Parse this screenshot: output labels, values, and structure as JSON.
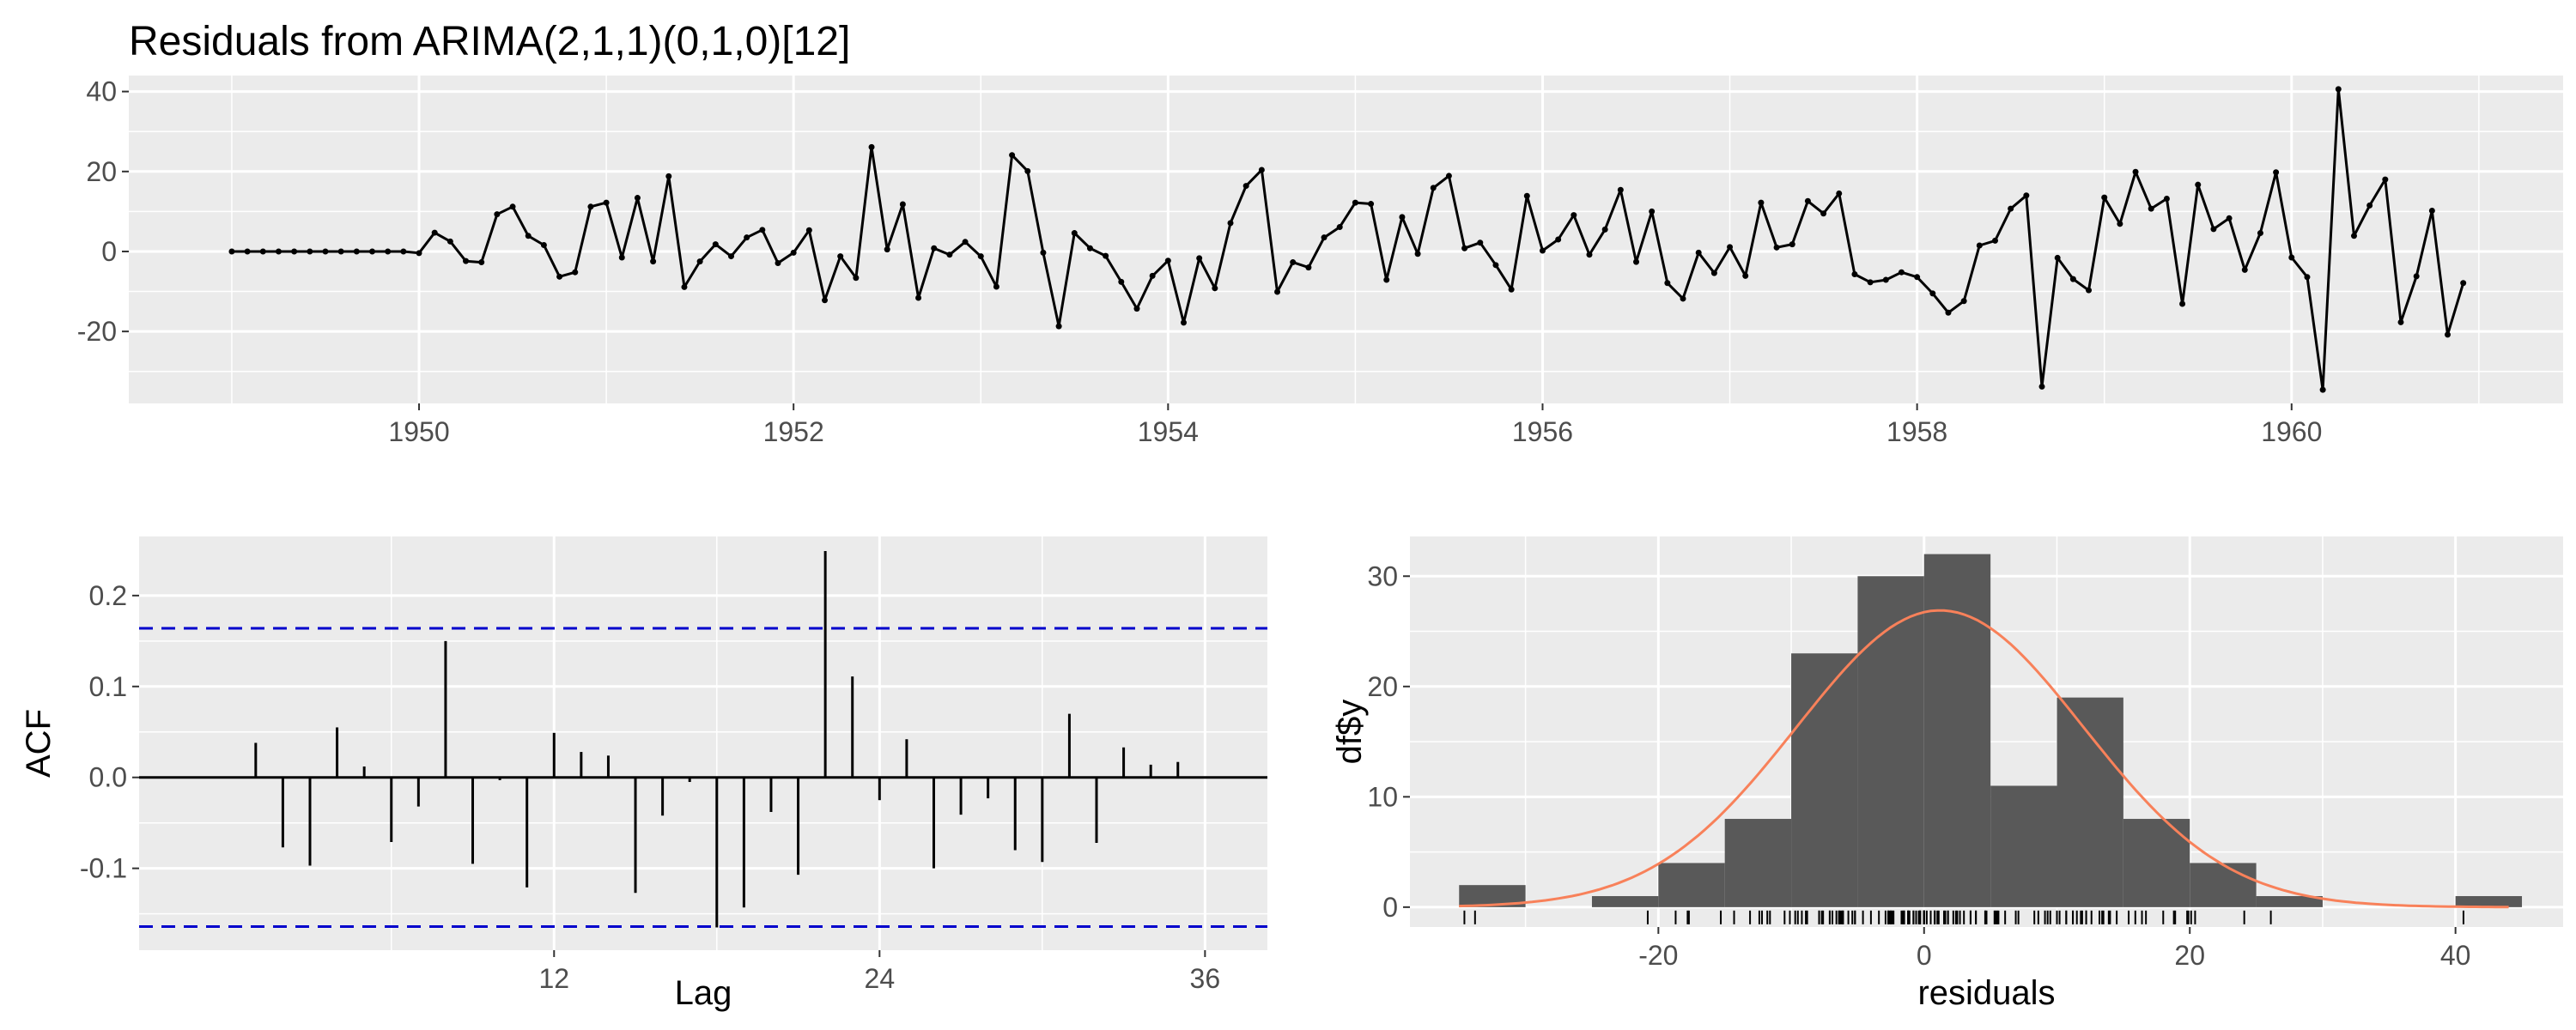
{
  "title": "Residuals from ARIMA(2,1,1)(0,1,0)[12]",
  "chart_data": [
    {
      "type": "line",
      "name": "residual-time-series",
      "x_start": 1949,
      "x_step": 0.0833333,
      "y": [
        0,
        0,
        0,
        0,
        0,
        0,
        0,
        0,
        0,
        0,
        0,
        0,
        -0.4,
        4.7,
        2.5,
        -2.4,
        -2.7,
        9.3,
        11.2,
        3.9,
        1.6,
        -6.3,
        -5.2,
        11.2,
        12.2,
        -1.5,
        13.4,
        -2.5,
        18.8,
        -8.9,
        -2.5,
        1.8,
        -1.2,
        3.5,
        5.4,
        -2.9,
        -0.3,
        5.3,
        -12.2,
        -1.2,
        -6.6,
        26.1,
        0.5,
        11.8,
        -11.6,
        0.8,
        -0.8,
        2.4,
        -1.2,
        -8.8,
        24.1,
        20.1,
        -0.3,
        -18.7,
        4.6,
        0.8,
        -1.1,
        -7.6,
        -14.3,
        -6.1,
        -2.3,
        -17.8,
        -1.7,
        -9.2,
        7.1,
        16.4,
        20.4,
        -10.1,
        -2.7,
        -4.0,
        3.5,
        6.1,
        12.2,
        11.9,
        -7.1,
        8.6,
        -0.6,
        15.9,
        18.9,
        0.8,
        2.2,
        -3.4,
        -9.5,
        13.9,
        0.2,
        3.0,
        9.1,
        -0.8,
        5.5,
        15.4,
        -2.6,
        10.0,
        -7.9,
        -11.8,
        -0.3,
        -5.4,
        1.1,
        -6.1,
        12.2,
        1.0,
        1.8,
        12.6,
        9.5,
        14.5,
        -5.7,
        -7.7,
        -7.1,
        -5.2,
        -6.4,
        -10.5,
        -15.3,
        -12.4,
        1.5,
        2.7,
        10.7,
        14.0,
        -33.8,
        -1.6,
        -6.9,
        -9.7,
        13.5,
        6.9,
        19.9,
        10.7,
        13.2,
        -13.1,
        16.7,
        5.6,
        8.3,
        -4.6,
        4.6,
        19.8,
        -1.5,
        -6.4,
        -34.6,
        40.6,
        3.9,
        11.5,
        18.0,
        -17.7,
        -6.2,
        10.2,
        -20.8,
        -7.9
      ],
      "xlim": [
        1948.45,
        1961.45
      ],
      "ylim": [
        -38,
        44
      ],
      "x_ticks": [
        1950,
        1952,
        1954,
        1956,
        1958,
        1960
      ],
      "y_ticks": [
        40,
        20,
        0,
        -20
      ],
      "grid": true,
      "color": "#000000"
    },
    {
      "type": "bar",
      "name": "acf",
      "xlabel": "Lag",
      "ylabel": "ACF",
      "lags": [
        1,
        2,
        3,
        4,
        5,
        6,
        7,
        8,
        9,
        10,
        11,
        12,
        13,
        14,
        15,
        16,
        17,
        18,
        19,
        20,
        21,
        22,
        23,
        24,
        25,
        26,
        27,
        28,
        29,
        30,
        31,
        32,
        33,
        34,
        35,
        36
      ],
      "values": [
        0.038,
        -0.077,
        -0.097,
        0.055,
        0.012,
        -0.071,
        -0.032,
        0.15,
        -0.095,
        -0.003,
        -0.121,
        0.049,
        0.028,
        0.024,
        -0.127,
        -0.042,
        -0.005,
        -0.165,
        -0.143,
        -0.038,
        -0.107,
        0.249,
        0.111,
        -0.025,
        0.042,
        -0.1,
        -0.041,
        -0.023,
        -0.08,
        -0.093,
        0.07,
        -0.072,
        0.033,
        0.014,
        0.017,
        0.0
      ],
      "ci": 0.164,
      "xlim": [
        -3.3,
        38.3
      ],
      "ylim": [
        -0.19,
        0.265
      ],
      "x_ticks": [
        12,
        24,
        36
      ],
      "y_ticks": [
        0.2,
        0.1,
        0.0,
        -0.1
      ],
      "y_tick_labels": [
        "0.2",
        "0.1",
        "0.0",
        "-0.1"
      ],
      "grid": true,
      "ci_color": "#0000cc"
    },
    {
      "type": "bar",
      "name": "residual-histogram",
      "xlabel": "residuals",
      "ylabel": "df$y",
      "bins": [
        {
          "x0": -35,
          "x1": -30,
          "count": 2
        },
        {
          "x0": -30,
          "x1": -25,
          "count": 0
        },
        {
          "x0": -25,
          "x1": -20,
          "count": 1
        },
        {
          "x0": -20,
          "x1": -15,
          "count": 4
        },
        {
          "x0": -15,
          "x1": -10,
          "count": 8
        },
        {
          "x0": -10,
          "x1": -5,
          "count": 23
        },
        {
          "x0": -5,
          "x1": 0,
          "count": 30
        },
        {
          "x0": 0,
          "x1": 5,
          "count": 32
        },
        {
          "x0": 5,
          "x1": 10,
          "count": 11
        },
        {
          "x0": 10,
          "x1": 15,
          "count": 19
        },
        {
          "x0": 15,
          "x1": 20,
          "count": 8
        },
        {
          "x0": 20,
          "x1": 25,
          "count": 4
        },
        {
          "x0": 25,
          "x1": 30,
          "count": 1
        },
        {
          "x0": 30,
          "x1": 35,
          "count": 0
        },
        {
          "x0": 35,
          "x1": 40,
          "count": 0
        },
        {
          "x0": 40,
          "x1": 45,
          "count": 1
        }
      ],
      "normal_curve": {
        "mean": 1.2,
        "sd": 10.8,
        "peak": 26.9,
        "color": "#f8815a"
      },
      "xlim": [
        -38.7,
        48.1
      ],
      "ylim": [
        -1.8,
        33.6
      ],
      "x_ticks": [
        -20,
        0,
        20,
        40
      ],
      "y_ticks": [
        30,
        20,
        10,
        0
      ],
      "bar_color": "#595959",
      "grid": true
    }
  ]
}
